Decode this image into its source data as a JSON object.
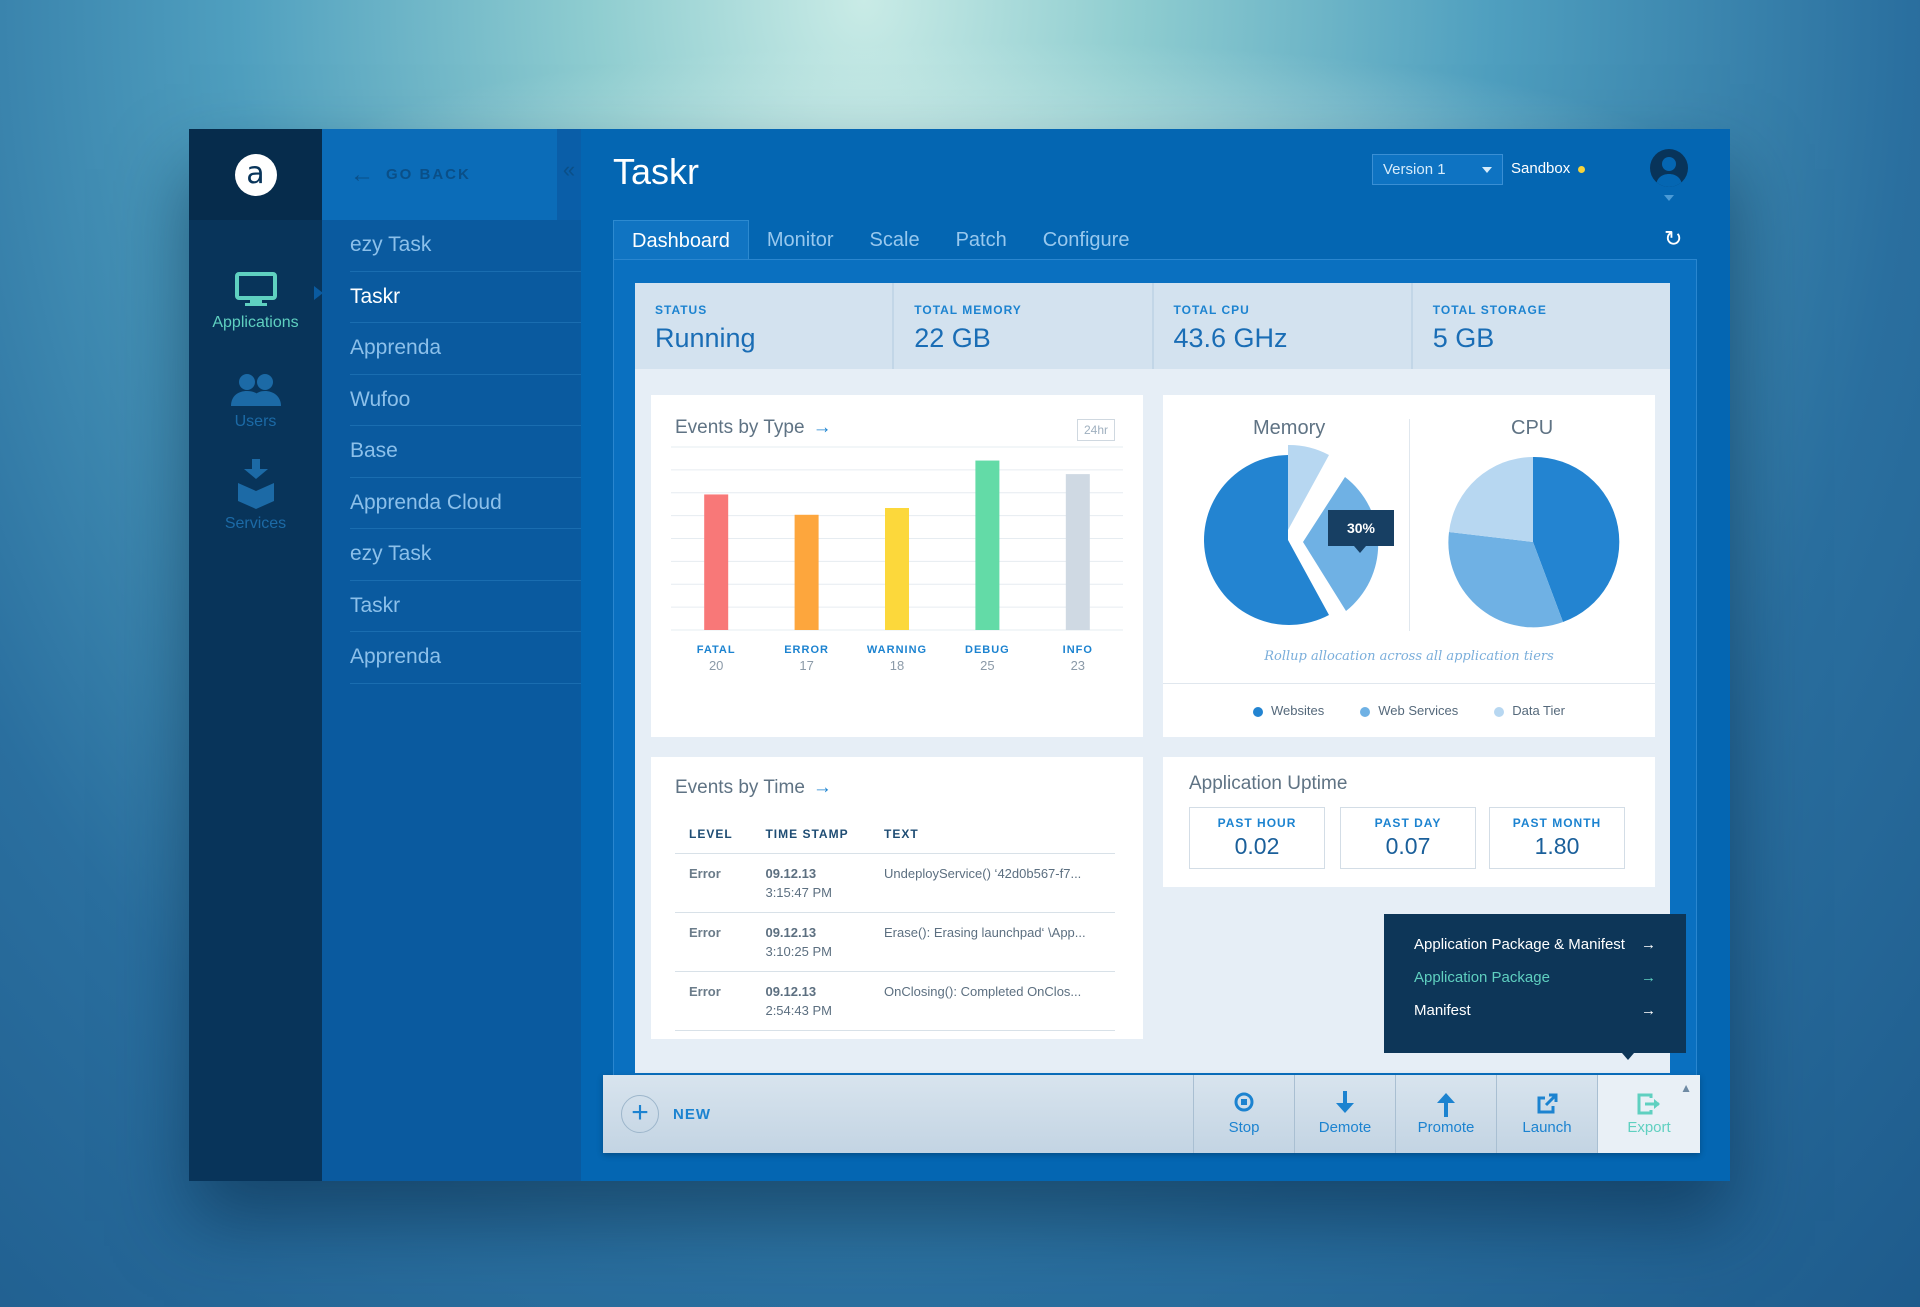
{
  "rail": {
    "logo": "a",
    "items": [
      {
        "label": "Applications",
        "icon": "monitor-icon"
      },
      {
        "label": "Users",
        "icon": "users-icon"
      },
      {
        "label": "Services",
        "icon": "box-icon"
      }
    ]
  },
  "apps": {
    "go_back": "GO BACK",
    "collapse": "«",
    "items": [
      "ezy Task",
      "Taskr",
      "Apprenda",
      "Wufoo",
      "Base",
      "Apprenda Cloud",
      "ezy Task",
      "Taskr",
      "Apprenda"
    ],
    "active_index": 1
  },
  "header": {
    "title": "Taskr",
    "version": "Version 1",
    "environment": "Sandbox",
    "environment_dot_color": "#f7d33a"
  },
  "tabs": [
    "Dashboard",
    "Monitor",
    "Scale",
    "Patch",
    "Configure"
  ],
  "stats": [
    {
      "label": "STATUS",
      "value": "Running"
    },
    {
      "label": "TOTAL MEMORY",
      "value": "22 GB"
    },
    {
      "label": "TOTAL CPU",
      "value": "43.6 GHz"
    },
    {
      "label": "TOTAL STORAGE",
      "value": "5 GB"
    }
  ],
  "events_by_type": {
    "title": "Events by Type",
    "range": "24hr"
  },
  "chart_data": {
    "type": "bar",
    "categories": [
      "FATAL",
      "ERROR",
      "WARNING",
      "DEBUG",
      "INFO"
    ],
    "values": [
      20,
      17,
      18,
      25,
      23
    ],
    "colors": [
      "#f87878",
      "#fda63d",
      "#fcd83b",
      "#63dba7",
      "#cfd9e3"
    ]
  },
  "pies": {
    "memory_title": "Memory",
    "cpu_title": "CPU",
    "tooltip": "30%",
    "caption": "Rollup allocation across all application tiers",
    "legend": [
      {
        "label": "Websites",
        "color": "#2384d1"
      },
      {
        "label": "Web Services",
        "color": "#6fb1e4"
      },
      {
        "label": "Data Tier",
        "color": "#b7d7f1"
      }
    ]
  },
  "events_by_time": {
    "title": "Events by Time",
    "columns": [
      "LEVEL",
      "TIME STAMP",
      "TEXT"
    ],
    "rows": [
      {
        "level": "Error",
        "date": "09.12.13",
        "time": "3:15:47 PM",
        "text": "UndeployService() ‘42d0b567-f7..."
      },
      {
        "level": "Error",
        "date": "09.12.13",
        "time": "3:10:25 PM",
        "text": "Erase(): Erasing launchpad‘ \\App..."
      },
      {
        "level": "Error",
        "date": "09.12.13",
        "time": "2:54:43 PM",
        "text": "OnClosing(): Completed OnClos..."
      }
    ]
  },
  "uptime": {
    "title": "Application Uptime",
    "boxes": [
      {
        "label": "PAST HOUR",
        "value": "0.02"
      },
      {
        "label": "PAST DAY",
        "value": "0.07"
      },
      {
        "label": "PAST MONTH",
        "value": "1.80"
      }
    ]
  },
  "export_menu": [
    {
      "label": "Application Package & Manifest"
    },
    {
      "label": "Application Package"
    },
    {
      "label": "Manifest"
    }
  ],
  "toolbar": {
    "new_label": "NEW",
    "buttons": [
      "Stop",
      "Demote",
      "Promote",
      "Launch",
      "Export"
    ]
  }
}
